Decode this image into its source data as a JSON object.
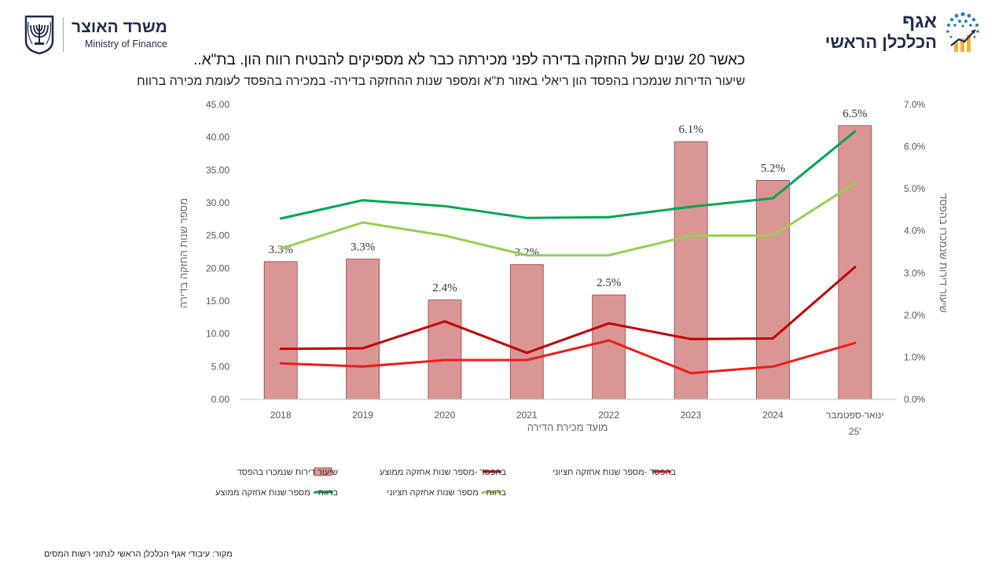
{
  "header": {
    "ministry_he": "משרד האוצר",
    "ministry_en": "Ministry of Finance",
    "dept_line1": "אגף",
    "dept_line2": "הכלכלן הראשי"
  },
  "source_note": "מקור: עיבודי אגף הכלכלן הראשי  לנתוני רשות המסים",
  "chart_data": {
    "type": "bar",
    "title": "כאשר 20 שנים של החזקה בדירה לפני מכירתה כבר לא מספיקים להבטיח רווח הון. בת\"א..",
    "subtitle": "שיעור הדירות שנמכרו בהפסד הון ריאלי באזור ת\"א ומספר שנות ההחזקה בדירה- במכירה בהפסד לעומת מכירה ברווח",
    "xlabel": "מועד מכירת הדירה",
    "ylabel_left": "מספר שנות החזקה בדירה",
    "ylabel_right": "שיעור דירות שנמכרו בהפסד",
    "categories": [
      "2018",
      "2019",
      "2020",
      "2021",
      "2022",
      "2023",
      "2024",
      "ינואר-ספטמבר '25"
    ],
    "ylim_left": [
      0,
      45
    ],
    "ylim_right": [
      0,
      7
    ],
    "left_ticks": [
      "0.00",
      "5.00",
      "10.00",
      "15.00",
      "20.00",
      "25.00",
      "30.00",
      "35.00",
      "40.00",
      "45.00"
    ],
    "right_ticks": [
      "0.0%",
      "1.0%",
      "2.0%",
      "3.0%",
      "4.0%",
      "5.0%",
      "6.0%",
      "7.0%"
    ],
    "bar_series": {
      "name": "שיעור דירות שנמכרו בהפסד",
      "axis": "right",
      "color": "#d99694",
      "values": [
        3.27,
        3.33,
        2.36,
        3.2,
        2.48,
        6.12,
        5.2,
        6.5
      ],
      "labels": [
        "3.3%",
        "3.3%",
        "2.4%",
        "3.2%",
        "2.5%",
        "6.1%",
        "5.2%",
        "6.5%"
      ]
    },
    "line_series": [
      {
        "name": "בהפסד -מספר שנות אחזקה ממוצע",
        "color": "#c00000",
        "values": [
          7.7,
          7.8,
          11.9,
          7.1,
          11.6,
          9.2,
          9.3,
          20.2
        ]
      },
      {
        "name": "בהפסד -מספר שנות אחזקה חציוני",
        "color": "#ee1c1c",
        "values": [
          5.5,
          5.0,
          6.0,
          6.0,
          9.0,
          4.0,
          5.0,
          8.6
        ]
      },
      {
        "name": "ברווח - מספר שנות אחזקה ממוצע",
        "color": "#00a650",
        "values": [
          27.6,
          30.4,
          29.5,
          27.7,
          27.8,
          29.4,
          30.7,
          40.9
        ]
      },
      {
        "name": "ברווח - מספר שנות אחזקה חציוני",
        "color": "#92d050",
        "values": [
          23.0,
          27.0,
          25.0,
          22.0,
          22.0,
          25.0,
          25.0,
          33.0
        ]
      }
    ],
    "legend_position": "bottom",
    "grid": false
  }
}
